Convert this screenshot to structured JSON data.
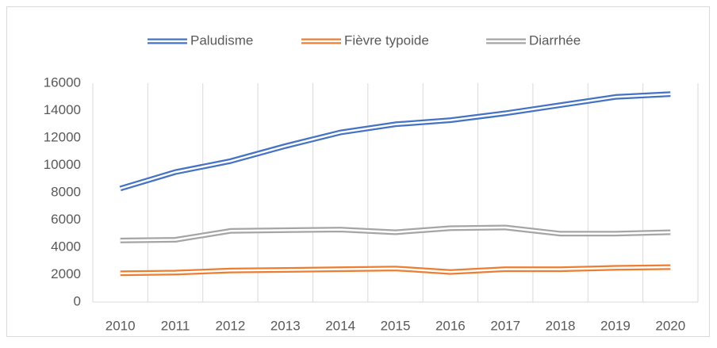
{
  "chart_data": {
    "type": "line",
    "categories": [
      "2010",
      "2011",
      "2012",
      "2013",
      "2014",
      "2015",
      "2016",
      "2017",
      "2018",
      "2019",
      "2020"
    ],
    "series": [
      {
        "name": "Paludisme",
        "color": "#4472c4",
        "values": [
          8300,
          9500,
          10300,
          11400,
          12400,
          13000,
          13300,
          13800,
          14400,
          15000,
          15200
        ]
      },
      {
        "name": "Fièvre typoide",
        "color": "#ed7d31",
        "values": [
          2100,
          2150,
          2300,
          2350,
          2400,
          2450,
          2200,
          2400,
          2400,
          2500,
          2550
        ]
      },
      {
        "name": "Diarrhée",
        "color": "#a5a5a5",
        "values": [
          4500,
          4550,
          5200,
          5250,
          5300,
          5100,
          5400,
          5450,
          5000,
          5000,
          5100
        ]
      }
    ],
    "ylim": [
      0,
      16000
    ],
    "yticks": [
      0,
      2000,
      4000,
      6000,
      8000,
      10000,
      12000,
      14000,
      16000
    ],
    "grid": "vertical",
    "legend": "top"
  }
}
